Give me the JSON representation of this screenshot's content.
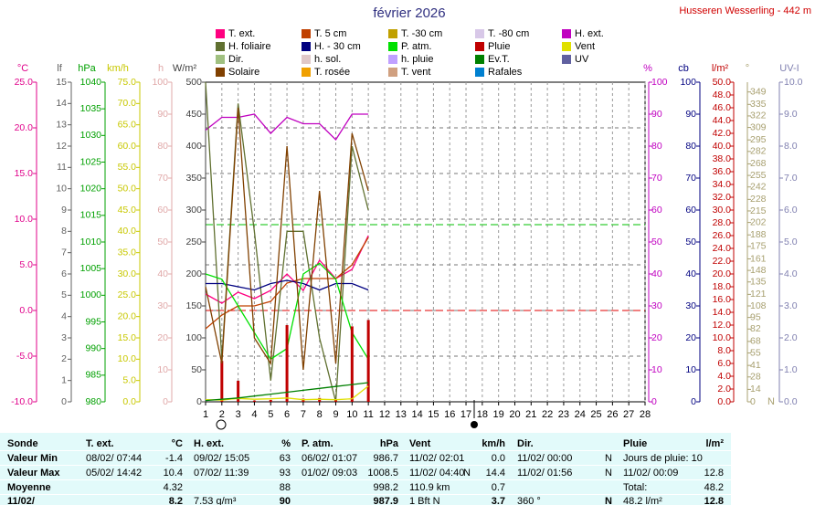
{
  "chart_data": {
    "type": "line",
    "title": "février 2026",
    "subtitle": "Husseren Wesserling - 442 m",
    "x": [
      1,
      2,
      3,
      4,
      5,
      6,
      7,
      8,
      9,
      10,
      11
    ],
    "xlim": [
      1,
      28
    ],
    "xticks": [
      1,
      2,
      3,
      4,
      5,
      6,
      7,
      8,
      9,
      10,
      11,
      12,
      13,
      14,
      15,
      16,
      17,
      18,
      19,
      20,
      21,
      22,
      23,
      24,
      25,
      26,
      27,
      28
    ],
    "grid": true,
    "axes": [
      {
        "name": "°C",
        "color": "#e0008a",
        "lim": [
          -10,
          25
        ],
        "ticks": [
          {
            "value": -10,
            "label": "-10.0"
          },
          {
            "value": -5,
            "label": "-5.0"
          },
          {
            "value": 0,
            "label": "0.0"
          },
          {
            "value": 5,
            "label": "5.0"
          },
          {
            "value": 10,
            "label": "10.0"
          },
          {
            "value": 15,
            "label": "15.0"
          },
          {
            "value": 20,
            "label": "20.0"
          },
          {
            "value": 25,
            "label": "25.0"
          }
        ]
      },
      {
        "name": "lf",
        "color": "#606060",
        "lim": [
          0,
          15
        ],
        "ticks": [
          0,
          1,
          2,
          3,
          4,
          5,
          6,
          7,
          8,
          9,
          10,
          11,
          12,
          13,
          14,
          15
        ]
      },
      {
        "name": "hPa",
        "color": "#00a000",
        "lim": [
          980,
          1040
        ],
        "ticks": [
          980,
          985,
          990,
          995,
          1000,
          1005,
          1010,
          1015,
          1020,
          1025,
          1030,
          1035,
          1040
        ]
      },
      {
        "name": "km/h",
        "color": "#c8c800",
        "lim": [
          0,
          75
        ],
        "ticks": [
          {
            "value": 0,
            "label": "0.0"
          },
          {
            "value": 5,
            "label": "5.0"
          },
          {
            "value": 10,
            "label": "10.0"
          },
          {
            "value": 15,
            "label": "15.0"
          },
          {
            "value": 20,
            "label": "20.0"
          },
          {
            "value": 25,
            "label": "25.0"
          },
          {
            "value": 30,
            "label": "30.0"
          },
          {
            "value": 35,
            "label": "35.0"
          },
          {
            "value": 40,
            "label": "40.0"
          },
          {
            "value": 45,
            "label": "45.0"
          },
          {
            "value": 50,
            "label": "50.0"
          },
          {
            "value": 55,
            "label": "55.0"
          },
          {
            "value": 60,
            "label": "60.0"
          },
          {
            "value": 65,
            "label": "65.0"
          },
          {
            "value": 70,
            "label": "70.0"
          },
          {
            "value": 75,
            "label": "75.0"
          }
        ]
      },
      {
        "name": "h",
        "color": "#e0a8a8",
        "lim": [
          0,
          100
        ],
        "ticks": [
          0,
          10,
          20,
          30,
          40,
          50,
          60,
          70,
          80,
          90,
          100
        ]
      },
      {
        "name": "W/m²",
        "color": "#404040",
        "lim": [
          0,
          500
        ],
        "ticks": [
          0,
          50,
          100,
          150,
          200,
          250,
          300,
          350,
          400,
          450,
          500
        ]
      },
      {
        "name": "%",
        "color": "#c000c0",
        "lim": [
          0,
          100
        ],
        "ticks": [
          0,
          10,
          20,
          30,
          40,
          50,
          60,
          70,
          80,
          90,
          100
        ]
      },
      {
        "name": "cb",
        "color": "#000080",
        "lim": [
          0,
          100
        ],
        "ticks": [
          0,
          10,
          20,
          30,
          40,
          50,
          60,
          70,
          80,
          90,
          100
        ]
      },
      {
        "name": "l/m²",
        "color": "#c00000",
        "lim": [
          0,
          50
        ],
        "ticks": [
          {
            "value": 0,
            "label": "0.0"
          },
          {
            "value": 2,
            "label": "2.0"
          },
          {
            "value": 4,
            "label": "4.0"
          },
          {
            "value": 6,
            "label": "6.0"
          },
          {
            "value": 8,
            "label": "8.0"
          },
          {
            "value": 10,
            "label": "10.0"
          },
          {
            "value": 12,
            "label": "12.0"
          },
          {
            "value": 14,
            "label": "14.0"
          },
          {
            "value": 16,
            "label": "16.0"
          },
          {
            "value": 18,
            "label": "18.0"
          },
          {
            "value": 20,
            "label": "20.0"
          },
          {
            "value": 22,
            "label": "22.0"
          },
          {
            "value": 24,
            "label": "24.0"
          },
          {
            "value": 26,
            "label": "26.0"
          },
          {
            "value": 28,
            "label": "28.0"
          },
          {
            "value": 30,
            "label": "30.0"
          },
          {
            "value": 32,
            "label": "32.0"
          },
          {
            "value": 34,
            "label": "34.0"
          },
          {
            "value": 36,
            "label": "36.0"
          },
          {
            "value": 38,
            "label": "38.0"
          },
          {
            "value": 40,
            "label": "40.0"
          },
          {
            "value": 42,
            "label": "42.0"
          },
          {
            "value": 44,
            "label": "44.0"
          },
          {
            "value": 46,
            "label": "46.0"
          },
          {
            "value": 48,
            "label": "48.0"
          },
          {
            "value": 50,
            "label": "50.0"
          }
        ]
      },
      {
        "name": "°",
        "color": "#a8a070",
        "lim": [
          0,
          360
        ],
        "bottom_label": "N",
        "ticks": [
          0,
          14,
          28,
          41,
          55,
          68,
          82,
          95,
          108,
          121,
          135,
          148,
          161,
          175,
          188,
          202,
          215,
          228,
          242,
          255,
          268,
          282,
          295,
          309,
          322,
          335,
          349
        ]
      },
      {
        "name": "UV-I",
        "color": "#8080b0",
        "lim": [
          0,
          10
        ],
        "ticks": [
          {
            "value": 0,
            "label": "0.0"
          },
          {
            "value": 1,
            "label": "1.0"
          },
          {
            "value": 2,
            "label": "2.0"
          },
          {
            "value": 3,
            "label": "3.0"
          },
          {
            "value": 4,
            "label": "4.0"
          },
          {
            "value": 5,
            "label": "5.0"
          },
          {
            "value": 6,
            "label": "6.0"
          },
          {
            "value": 7,
            "label": "7.0"
          },
          {
            "value": 8,
            "label": "8.0"
          },
          {
            "value": 9,
            "label": "9.0"
          },
          {
            "value": 10,
            "label": "10.0"
          }
        ]
      }
    ],
    "reference_lines": [
      {
        "axis": 0,
        "value": 0,
        "color": "#e00000"
      },
      {
        "axis": 2,
        "value": 1013.25,
        "color": "#00c000"
      }
    ],
    "series": [
      {
        "name": "T. ext.",
        "color": "#ff0080",
        "axis": 0,
        "style": "line",
        "values": [
          1.8,
          0.8,
          2.0,
          1.3,
          2.2,
          4.0,
          2.2,
          5.5,
          3.5,
          4.5,
          8.2
        ]
      },
      {
        "name": "T. 5 cm",
        "color": "#c04000",
        "axis": 0,
        "style": "line",
        "values": [
          -2.0,
          -0.5,
          0.5,
          0.5,
          1.0,
          3.0,
          3.5,
          3.5,
          3.5,
          5.0,
          8.0
        ]
      },
      {
        "name": "T. -30 cm",
        "color": "#c0a000",
        "axis": 0,
        "style": "line",
        "values": [
          null,
          null,
          null,
          null,
          null,
          null,
          null,
          null,
          null,
          null,
          null
        ]
      },
      {
        "name": "T. -80 cm",
        "color": "#d8c8e8",
        "axis": 0,
        "style": "line",
        "values": [
          null,
          null,
          null,
          null,
          null,
          null,
          null,
          null,
          null,
          null,
          null
        ]
      },
      {
        "name": "H. ext.",
        "color": "#c000c0",
        "axis": 6,
        "style": "line",
        "values": [
          85,
          89,
          89,
          90,
          84,
          89,
          87,
          87,
          82,
          90,
          90
        ]
      },
      {
        "name": "H. foliaire",
        "color": "#607030",
        "axis": 1,
        "style": "line",
        "values": [
          15,
          2,
          14,
          8,
          1,
          8,
          8,
          3,
          0,
          12,
          9
        ]
      },
      {
        "name": "H. - 30 cm",
        "color": "#000080",
        "axis": 7,
        "style": "line",
        "values": [
          37,
          37,
          36,
          35,
          37,
          38,
          37,
          35,
          37,
          37,
          35
        ]
      },
      {
        "name": "P. atm.",
        "color": "#00e000",
        "axis": 2,
        "style": "line",
        "values": [
          1004,
          1003,
          998,
          993,
          988,
          990,
          1004,
          1006,
          1003,
          993,
          988
        ]
      },
      {
        "name": "Pluie",
        "color": "#c00000",
        "axis": 8,
        "style": "bar",
        "values": [
          0.0,
          6.4,
          3.3,
          0.2,
          0.3,
          12.0,
          0.5,
          0.6,
          0.4,
          11.8,
          12.8
        ]
      },
      {
        "name": "Vent",
        "color": "#e0e000",
        "axis": 3,
        "style": "line",
        "values": [
          0.5,
          0.4,
          0.8,
          0.6,
          0.7,
          0.9,
          0.5,
          0.6,
          0.5,
          0.7,
          3.7
        ]
      },
      {
        "name": "Dir.",
        "color": "#a0c080",
        "axis": 9,
        "style": "line",
        "values": [
          null,
          null,
          null,
          null,
          null,
          null,
          null,
          null,
          null,
          null,
          null
        ]
      },
      {
        "name": "h. sol.",
        "color": "#e0c8c8",
        "axis": 4,
        "style": "line",
        "values": [
          null,
          null,
          null,
          null,
          null,
          null,
          null,
          null,
          null,
          null,
          null
        ]
      },
      {
        "name": "h. pluie",
        "color": "#c0a0ff",
        "axis": 4,
        "style": "line",
        "values": [
          null,
          null,
          null,
          null,
          null,
          null,
          null,
          null,
          null,
          null,
          null
        ]
      },
      {
        "name": "Ev.T.",
        "color": "#008000",
        "axis": 8,
        "style": "line",
        "values": [
          0.2,
          0.4,
          0.6,
          0.9,
          1.2,
          1.5,
          1.8,
          2.1,
          2.4,
          2.7,
          3.0
        ]
      },
      {
        "name": "UV",
        "color": "#6060a0",
        "axis": 10,
        "style": "line",
        "values": [
          null,
          null,
          null,
          null,
          null,
          null,
          null,
          null,
          null,
          null,
          null
        ]
      },
      {
        "name": "Solaire",
        "color": "#804000",
        "axis": 5,
        "style": "line",
        "values": [
          180,
          60,
          460,
          100,
          60,
          400,
          50,
          330,
          60,
          420,
          330
        ]
      },
      {
        "name": "T. rosée",
        "color": "#f0a000",
        "axis": 0,
        "style": "line",
        "values": [
          null,
          null,
          null,
          null,
          null,
          null,
          null,
          null,
          null,
          null,
          null
        ]
      },
      {
        "name": "T. vent",
        "color": "#d0a080",
        "axis": 0,
        "style": "line",
        "values": [
          null,
          null,
          null,
          null,
          null,
          null,
          null,
          null,
          null,
          null,
          null
        ]
      },
      {
        "name": "Rafales",
        "color": "#0080d0",
        "axis": 3,
        "style": "line",
        "values": [
          null,
          null,
          null,
          null,
          null,
          null,
          null,
          null,
          null,
          null,
          null
        ]
      }
    ]
  },
  "table": {
    "headers": [
      [
        "Sonde"
      ],
      [
        "T. ext.",
        "°C"
      ],
      [
        "H. ext.",
        "%"
      ],
      [
        "P. atm.",
        "hPa"
      ],
      [
        "Vent",
        "km/h"
      ],
      [
        "Dir."
      ],
      [
        "Pluie",
        "l/m²"
      ]
    ],
    "rows": [
      {
        "label": "Valeur Min",
        "cells": [
          [
            "08/02/  07:44",
            "-1.4"
          ],
          [
            "09/02/  15:05",
            "63"
          ],
          [
            "06/02/  01:07",
            "986.7"
          ],
          [
            "11/02/  02:01",
            "0.0"
          ],
          [
            "11/02/  00:00",
            "N"
          ],
          [
            "Jours de pluie: 10"
          ]
        ]
      },
      {
        "label": "Valeur Max",
        "cells": [
          [
            "05/02/  14:42",
            "10.4"
          ],
          [
            "07/02/  11:39",
            "93"
          ],
          [
            "01/02/  09:03",
            "1008.5"
          ],
          [
            "11/02/  04:40",
            "N",
            "14.4"
          ],
          [
            "11/02/  01:56",
            "N"
          ],
          [
            "11/02/  00:09",
            "12.8"
          ]
        ]
      },
      {
        "label": "Moyenne",
        "cells": [
          [
            null,
            "4.32"
          ],
          [
            null,
            "88"
          ],
          [
            null,
            "998.2"
          ],
          [
            "110.9 km",
            "0.7"
          ],
          [],
          [
            "Total:",
            "48.2"
          ]
        ]
      },
      {
        "label": "11/02/",
        "cells": [
          [
            null,
            "8.2"
          ],
          [
            "7.53 g/m³",
            "90"
          ],
          [
            null,
            "987.9"
          ],
          [
            "1 Bft N",
            "3.7"
          ],
          [
            "360 °",
            "N"
          ],
          [
            "48.2 l/m²",
            "12.8"
          ]
        ]
      }
    ]
  }
}
